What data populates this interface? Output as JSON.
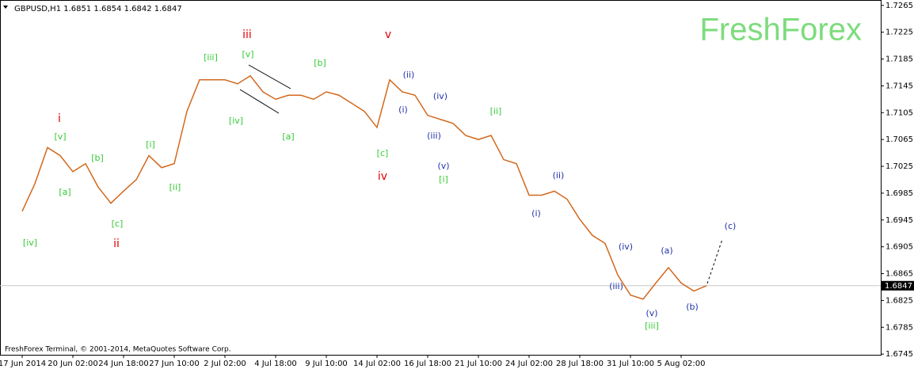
{
  "chart_data": {
    "type": "line",
    "header": "GBPUSD,H1  1.6851 1.6854 1.6842 1.6847",
    "watermark": "FreshForex",
    "footer": "FreshForex Terminal, © 2001-2014, MetaQuotes Software Corp.",
    "categories": [
      "17 Jun 2014",
      null,
      null,
      null,
      "20 Jun 02:00",
      null,
      null,
      null,
      "24 Jun 18:00",
      null,
      null,
      null,
      "27 Jun 10:00",
      null,
      null,
      null,
      "2 Jul 02:00",
      null,
      null,
      null,
      "4 Jul 18:00",
      null,
      null,
      null,
      "9 Jul 10:00",
      null,
      null,
      null,
      "14 Jul 02:00",
      null,
      null,
      null,
      "16 Jul 18:00",
      null,
      null,
      null,
      "21 Jul 10:00",
      null,
      null,
      null,
      "24 Jul 02:00",
      null,
      null,
      null,
      "28 Jul 18:00",
      null,
      null,
      null,
      "31 Jul 10:00",
      null,
      null,
      null,
      "5 Aug 02:00",
      null,
      null
    ],
    "series": [
      {
        "name": "GBPUSD",
        "color": "#d2691e",
        "values": [
          1.6958,
          1.6999,
          1.7053,
          1.7041,
          1.7017,
          1.7029,
          1.6994,
          1.697,
          1.6988,
          1.7005,
          1.7041,
          1.7023,
          1.7029,
          1.7107,
          1.7154,
          1.7154,
          1.7154,
          1.7148,
          1.716,
          1.7136,
          1.7125,
          1.7131,
          1.7131,
          1.7125,
          1.7136,
          1.7131,
          1.7119,
          1.7107,
          1.7083,
          1.7154,
          1.7136,
          1.7131,
          1.7101,
          1.7095,
          1.7089,
          1.7071,
          1.7065,
          1.7071,
          1.7035,
          1.7029,
          1.6982,
          1.6982,
          1.6988,
          1.6976,
          1.6946,
          1.6922,
          1.691,
          1.6863,
          1.6833,
          1.6827,
          1.6851,
          1.6874,
          1.6851,
          1.6839,
          1.6847
        ]
      }
    ],
    "last_price": 1.6847,
    "ylim": [
      1.6744,
      1.7273
    ],
    "yticks": [
      1.7265,
      1.7225,
      1.7185,
      1.7145,
      1.7105,
      1.7065,
      1.7025,
      1.6985,
      1.6945,
      1.6905,
      1.6865,
      1.6825,
      1.6785,
      1.6745
    ],
    "wave_labels": [
      {
        "color": "#e00000",
        "labels": [
          "i",
          "ii",
          "iii",
          "iv",
          "v"
        ]
      },
      {
        "color": "#33cc33",
        "labels": [
          "[iv]",
          "[v]",
          "[a]",
          "[b]",
          "[c]",
          "[i]",
          "[ii]",
          "[iii]",
          "[v]",
          "[iv]",
          "[a]",
          "[b]",
          "[c]",
          "[i]",
          "[ii]",
          "[iii]"
        ]
      },
      {
        "color": "#2233aa",
        "labels": [
          "(i)",
          "(ii)",
          "(iii)",
          "(iv)",
          "(v)",
          "(i)",
          "(ii)",
          "(iii)",
          "(iv)",
          "(v)",
          "(a)",
          "(b)",
          "(c)"
        ]
      }
    ]
  }
}
